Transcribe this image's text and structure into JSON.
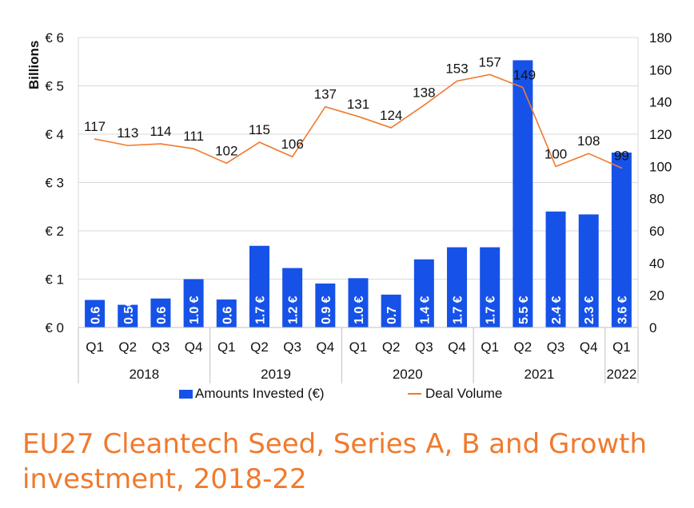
{
  "title": "EU27 Cleantech Seed, Series A, B and Growth investment, 2018-22",
  "chart_data": {
    "type": "bar+line",
    "title": "EU27 Cleantech Seed, Series A, B and Growth investment, 2018-22",
    "ylabel_left": "Billions",
    "y_left_ticks": [
      "€ 0",
      "€ 1",
      "€ 2",
      "€ 3",
      "€ 4",
      "€ 5",
      "€ 6"
    ],
    "y_left_range": [
      0,
      6
    ],
    "y_right_ticks": [
      "0",
      "20",
      "40",
      "60",
      "80",
      "100",
      "120",
      "140",
      "160",
      "180"
    ],
    "y_right_range": [
      0,
      180
    ],
    "grid": true,
    "legend_position": "bottom",
    "categories": [
      "Q1",
      "Q2",
      "Q3",
      "Q4",
      "Q1",
      "Q2",
      "Q3",
      "Q4",
      "Q1",
      "Q2",
      "Q3",
      "Q4",
      "Q1",
      "Q2",
      "Q3",
      "Q4",
      "Q1"
    ],
    "years": [
      {
        "label": "2018",
        "count": 4
      },
      {
        "label": "2019",
        "count": 4
      },
      {
        "label": "2020",
        "count": 4
      },
      {
        "label": "2021",
        "count": 4
      },
      {
        "label": "2022",
        "count": 1
      }
    ],
    "series": [
      {
        "name": "Amounts Invested (€)",
        "type": "bar",
        "axis": "left",
        "color": "#1652e8",
        "values": [
          0.57,
          0.47,
          0.6,
          1.0,
          0.58,
          1.69,
          1.23,
          0.91,
          1.02,
          0.68,
          1.41,
          1.66,
          1.66,
          5.53,
          2.4,
          2.34,
          3.62
        ],
        "labels": [
          "0.6",
          "0.5€",
          "0.6",
          "1.0 €",
          "0.6",
          "1.7 €",
          "1.2 €",
          "0.9 €",
          "1.0 €",
          "0.7",
          "1.4 €",
          "1.7 €",
          "1.7 €",
          "5.5 €",
          "2.4 €",
          "2.3 €",
          "3.6 €"
        ]
      },
      {
        "name": "Deal Volume",
        "type": "line",
        "axis": "right",
        "color": "#f07a2e",
        "values": [
          117,
          113,
          114,
          111,
          102,
          115,
          106,
          137,
          131,
          124,
          138,
          153,
          157,
          149,
          100,
          108,
          99
        ]
      }
    ]
  }
}
